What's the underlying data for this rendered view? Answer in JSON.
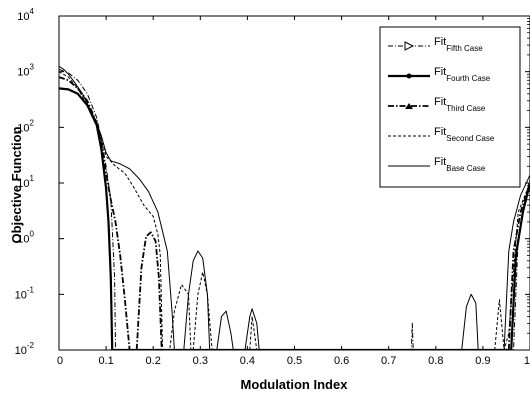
{
  "chart_data": {
    "type": "line",
    "title": "",
    "xlabel": "Modulation Index",
    "ylabel": "Objective Function",
    "xlim": [
      0,
      1
    ],
    "ylim": [
      0.01,
      10000
    ],
    "yscale": "log",
    "grid": false,
    "legend_position": "top-right",
    "x_ticks": [
      "0",
      "0.1",
      "0.2",
      "0.3",
      "0.4",
      "0.5",
      "0.6",
      "0.7",
      "0.8",
      "0.9",
      "1"
    ],
    "x_tick_values": [
      0,
      0.1,
      0.2,
      0.3,
      0.4,
      0.5,
      0.6,
      0.7,
      0.8,
      0.9,
      1.0
    ],
    "y_ticks": [
      {
        "base": "10",
        "exp": "-2",
        "value": 0.01
      },
      {
        "base": "10",
        "exp": "-1",
        "value": 0.1
      },
      {
        "base": "10",
        "exp": "0",
        "value": 1
      },
      {
        "base": "10",
        "exp": "1",
        "value": 10
      },
      {
        "base": "10",
        "exp": "2",
        "value": 100
      },
      {
        "base": "10",
        "exp": "3",
        "value": 1000
      },
      {
        "base": "10",
        "exp": "4",
        "value": 10000
      }
    ],
    "legend": [
      {
        "main": "Fit",
        "sub": "Fifth Case",
        "style": "triangle"
      },
      {
        "main": "Fit",
        "sub": "Fourth Case",
        "style": "thick"
      },
      {
        "main": "Fit",
        "sub": "Third Case",
        "style": "dashdot"
      },
      {
        "main": "Fit",
        "sub": "Second Case",
        "style": "dashed"
      },
      {
        "main": "Fit",
        "sub": "Base Case",
        "style": "solid"
      }
    ],
    "series": [
      {
        "name": "Fit Base Case",
        "style": "solid",
        "points": [
          [
            0,
            1250
          ],
          [
            0.01,
            1100
          ],
          [
            0.02,
            900
          ],
          [
            0.03,
            700
          ],
          [
            0.05,
            400
          ],
          [
            0.07,
            180
          ],
          [
            0.08,
            120
          ],
          [
            0.09,
            70
          ],
          [
            0.1,
            35
          ],
          [
            0.11,
            25
          ],
          [
            0.13,
            22
          ],
          [
            0.15,
            18
          ],
          [
            0.17,
            12
          ],
          [
            0.19,
            7
          ],
          [
            0.21,
            3
          ],
          [
            0.23,
            0.6
          ],
          [
            0.24,
            0.05
          ],
          [
            0.245,
            0.01
          ],
          [
            0.265,
            0.01
          ],
          [
            0.275,
            0.1
          ],
          [
            0.285,
            0.4
          ],
          [
            0.295,
            0.6
          ],
          [
            0.305,
            0.45
          ],
          [
            0.315,
            0.1
          ],
          [
            0.32,
            0.01
          ],
          [
            0.335,
            0.01
          ],
          [
            0.345,
            0.04
          ],
          [
            0.355,
            0.05
          ],
          [
            0.365,
            0.02
          ],
          [
            0.37,
            0.01
          ],
          [
            0.395,
            0.01
          ],
          [
            0.405,
            0.04
          ],
          [
            0.41,
            0.055
          ],
          [
            0.42,
            0.03
          ],
          [
            0.425,
            0.01
          ],
          [
            0.855,
            0.01
          ],
          [
            0.865,
            0.06
          ],
          [
            0.875,
            0.1
          ],
          [
            0.885,
            0.07
          ],
          [
            0.89,
            0.01
          ],
          [
            0.945,
            0.01
          ],
          [
            0.955,
            0.6
          ],
          [
            0.965,
            2
          ],
          [
            0.98,
            6
          ],
          [
            1.0,
            14
          ]
        ]
      },
      {
        "name": "Fit Second Case",
        "style": "dashed",
        "points": [
          [
            0,
            1000
          ],
          [
            0.02,
            800
          ],
          [
            0.04,
            500
          ],
          [
            0.06,
            250
          ],
          [
            0.08,
            110
          ],
          [
            0.09,
            60
          ],
          [
            0.1,
            30
          ],
          [
            0.12,
            20
          ],
          [
            0.14,
            15
          ],
          [
            0.16,
            8
          ],
          [
            0.18,
            4
          ],
          [
            0.2,
            2.5
          ],
          [
            0.21,
            1.2
          ],
          [
            0.215,
            0.5
          ],
          [
            0.22,
            0.01
          ],
          [
            0.235,
            0.01
          ],
          [
            0.245,
            0.05
          ],
          [
            0.26,
            0.15
          ],
          [
            0.275,
            0.1
          ],
          [
            0.28,
            0.01
          ],
          [
            0.285,
            0.01
          ],
          [
            0.295,
            0.1
          ],
          [
            0.305,
            0.25
          ],
          [
            0.315,
            0.1
          ],
          [
            0.325,
            0.01
          ],
          [
            0.405,
            0.01
          ],
          [
            0.41,
            0.04
          ],
          [
            0.42,
            0.01
          ],
          [
            0.925,
            0.01
          ],
          [
            0.935,
            0.08
          ],
          [
            0.945,
            0.01
          ],
          [
            0.955,
            0.02
          ],
          [
            0.975,
            3
          ],
          [
            1.0,
            10
          ]
        ]
      },
      {
        "name": "Fit Third Case",
        "style": "dashdot",
        "points": [
          [
            0,
            800
          ],
          [
            0.02,
            700
          ],
          [
            0.04,
            500
          ],
          [
            0.06,
            300
          ],
          [
            0.08,
            120
          ],
          [
            0.09,
            50
          ],
          [
            0.1,
            15
          ],
          [
            0.11,
            5
          ],
          [
            0.12,
            2
          ],
          [
            0.13,
            0.5
          ],
          [
            0.14,
            0.08
          ],
          [
            0.15,
            0.01
          ],
          [
            0.165,
            0.01
          ],
          [
            0.175,
            0.3
          ],
          [
            0.185,
            1.1
          ],
          [
            0.195,
            1.3
          ],
          [
            0.205,
            0.9
          ],
          [
            0.212,
            0.2
          ],
          [
            0.218,
            0.01
          ],
          [
            0.955,
            0.01
          ],
          [
            0.965,
            0.6
          ],
          [
            0.98,
            3
          ],
          [
            1.0,
            10
          ]
        ]
      },
      {
        "name": "Fit Fourth Case",
        "style": "thick",
        "points": [
          [
            0,
            500
          ],
          [
            0.02,
            480
          ],
          [
            0.04,
            400
          ],
          [
            0.06,
            250
          ],
          [
            0.08,
            110
          ],
          [
            0.09,
            40
          ],
          [
            0.1,
            8
          ],
          [
            0.105,
            2
          ],
          [
            0.11,
            0.2
          ],
          [
            0.113,
            0.01
          ],
          [
            0.96,
            0.01
          ],
          [
            0.97,
            0.5
          ],
          [
            0.985,
            3
          ],
          [
            1.0,
            10
          ]
        ]
      },
      {
        "name": "Fit Fifth Case",
        "style": "triangle",
        "points": [
          [
            0,
            1100
          ],
          [
            0.02,
            950
          ],
          [
            0.04,
            700
          ],
          [
            0.06,
            400
          ],
          [
            0.08,
            150
          ],
          [
            0.09,
            60
          ],
          [
            0.1,
            20
          ],
          [
            0.11,
            5
          ],
          [
            0.118,
            0.2
          ],
          [
            0.12,
            0.01
          ],
          [
            0.748,
            0.01
          ],
          [
            0.75,
            0.03
          ],
          [
            0.752,
            0.01
          ],
          [
            0.965,
            0.01
          ],
          [
            0.975,
            1
          ],
          [
            0.99,
            5
          ],
          [
            1.0,
            12
          ]
        ]
      }
    ]
  }
}
